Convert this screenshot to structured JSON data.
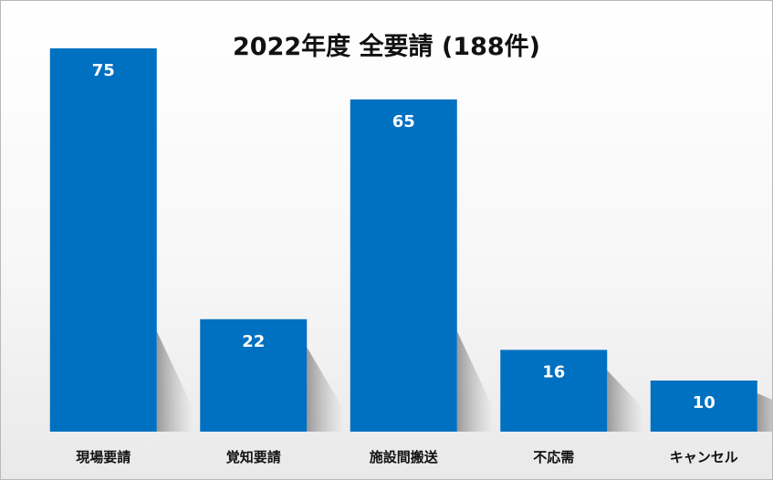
{
  "chart_data": {
    "type": "bar",
    "title": "2022年度 全要請 (188件)",
    "categories": [
      "現場要請",
      "覚知要請",
      "施設間搬送",
      "不応需",
      "キャンセル"
    ],
    "values": [
      75,
      22,
      65,
      16,
      10
    ],
    "xlabel": "",
    "ylabel": "",
    "ylim": [
      0,
      80
    ],
    "grid": false,
    "legend": "none",
    "bar_color": "#0070c0",
    "data_label_color": "#ffffff"
  }
}
